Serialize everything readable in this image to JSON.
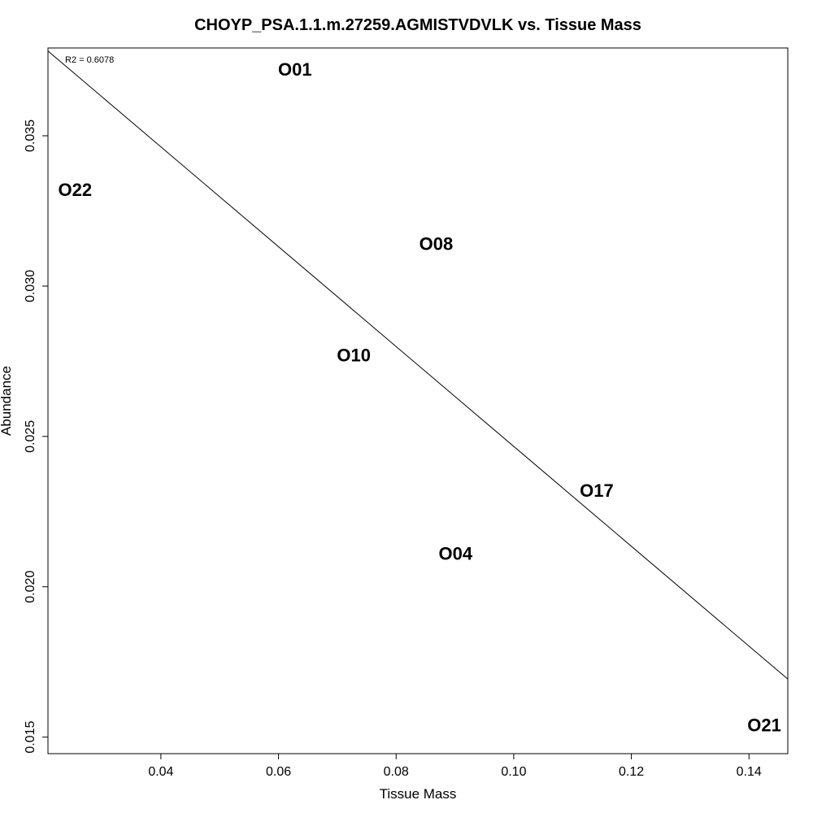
{
  "chart_data": {
    "type": "scatter",
    "title": "CHOYP_PSA.1.1.m.27259.AGMISTVDVLK vs. Tissue Mass",
    "xlabel": "Tissue Mass",
    "ylabel": "Abundance",
    "xlim": [
      0.0208,
      0.1466
    ],
    "ylim": [
      0.01445,
      0.03792
    ],
    "x_ticks": [
      0.04,
      0.06,
      0.08,
      0.1,
      0.12,
      0.14
    ],
    "x_tick_labels": [
      "0.04",
      "0.06",
      "0.08",
      "0.10",
      "0.12",
      "0.14"
    ],
    "y_ticks": [
      0.015,
      0.02,
      0.025,
      0.03,
      0.035
    ],
    "y_tick_labels": [
      "0.015",
      "0.020",
      "0.025",
      "0.030",
      "0.035"
    ],
    "grid": false,
    "annotation": "R2 = 0.6078",
    "points": [
      {
        "label": "O01",
        "x": 0.0628,
        "y": 0.0372
      },
      {
        "label": "O22",
        "x": 0.0254,
        "y": 0.0332
      },
      {
        "label": "O08",
        "x": 0.0868,
        "y": 0.0314
      },
      {
        "label": "O10",
        "x": 0.0728,
        "y": 0.0277
      },
      {
        "label": "O17",
        "x": 0.1141,
        "y": 0.0232
      },
      {
        "label": "O04",
        "x": 0.0901,
        "y": 0.0211
      },
      {
        "label": "O21",
        "x": 0.1426,
        "y": 0.0154
      }
    ],
    "regression_line": {
      "x": [
        0.0208,
        0.1466
      ],
      "y": [
        0.03782,
        0.01693
      ]
    }
  }
}
